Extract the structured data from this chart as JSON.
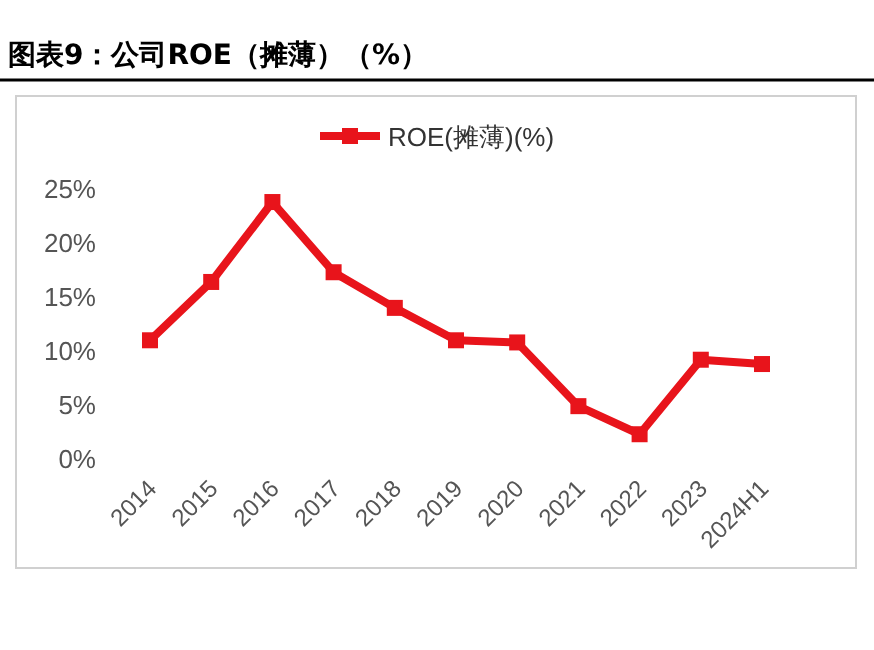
{
  "chart_data": {
    "type": "line",
    "title": "图表9：公司ROE（摊薄）（%）",
    "categories": [
      "2014",
      "2015",
      "2016",
      "2017",
      "2018",
      "2019",
      "2020",
      "2021",
      "2022",
      "2023",
      "2024H1"
    ],
    "series": [
      {
        "name": "ROE(摊薄)(%)",
        "color": "#e8141b",
        "values": [
          10.9,
          16.3,
          23.7,
          17.2,
          13.9,
          10.9,
          10.7,
          4.8,
          2.2,
          9.1,
          8.7
        ]
      }
    ],
    "ylim": [
      0,
      25
    ],
    "yticks": [
      {
        "value": 0,
        "label": "0%"
      },
      {
        "value": 5,
        "label": "5%"
      },
      {
        "value": 10,
        "label": "10%"
      },
      {
        "value": 15,
        "label": "15%"
      },
      {
        "value": 20,
        "label": "20%"
      },
      {
        "value": 25,
        "label": "25%"
      }
    ],
    "legend": "top",
    "marker": "square",
    "line_style": "solid",
    "grid": false
  }
}
